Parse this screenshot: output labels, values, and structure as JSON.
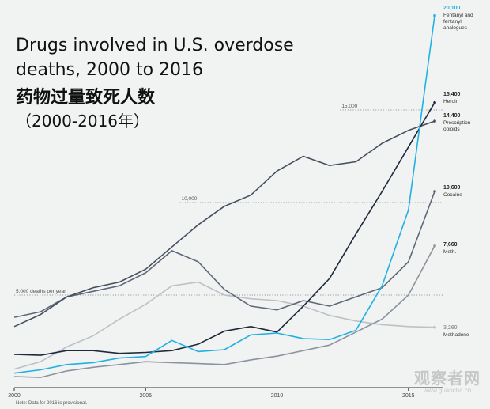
{
  "title_en": "Drugs involved in U.S. overdose deaths, 2000 to 2016",
  "title_zh": "药物过量致死人数",
  "title_zh_years": "（2000-2016年）",
  "note": "Note: Data for 2016 is provisional.",
  "watermark": {
    "name": "观察者网",
    "url": "www.guancha.cn"
  },
  "chart_data": {
    "type": "line",
    "title": "Drugs involved in U.S. overdose deaths, 2000 to 2016",
    "x": [
      2000,
      2001,
      2002,
      2003,
      2004,
      2005,
      2006,
      2007,
      2008,
      2009,
      2010,
      2011,
      2012,
      2013,
      2014,
      2015,
      2016
    ],
    "xlim": [
      2000,
      2016.3
    ],
    "ylim": [
      0,
      20600
    ],
    "x_ticks": [
      {
        "value": 2000,
        "label": "2000"
      },
      {
        "value": 2005,
        "label": "2005"
      },
      {
        "value": 2010,
        "label": "2010"
      },
      {
        "value": 2015,
        "label": "2015"
      }
    ],
    "reference_lines": [
      {
        "value": 5000,
        "label": "5,000 deaths per year"
      },
      {
        "value": 10000,
        "label": "10,000"
      },
      {
        "value": 15000,
        "label": "15,000"
      }
    ],
    "series": [
      {
        "name": "Fentanyl and fentanyl analogues",
        "end_label": "20,100",
        "label_lines": [
          "Fentanyl and",
          "fentanyl",
          "analogues"
        ],
        "color": "#1fb1e3",
        "values": [
          780,
          960,
          1250,
          1350,
          1600,
          1680,
          2550,
          1950,
          2050,
          2850,
          2950,
          2650,
          2600,
          3100,
          5500,
          9600,
          20100
        ]
      },
      {
        "name": "Heroin",
        "end_label": "15,400",
        "label_lines": [
          "Heroin"
        ],
        "color": "#1e2939",
        "values": [
          1800,
          1750,
          2000,
          2000,
          1850,
          1900,
          2000,
          2350,
          3050,
          3300,
          3000,
          4400,
          5900,
          8300,
          10600,
          13000,
          15400
        ]
      },
      {
        "name": "Prescription opioids",
        "end_label": "14,400",
        "label_lines": [
          "Prescription",
          "opioids"
        ],
        "color": "#454f5e",
        "values": [
          3300,
          3950,
          4900,
          5400,
          5700,
          6400,
          7600,
          8800,
          9800,
          10400,
          11700,
          12500,
          12000,
          12200,
          13200,
          13900,
          14400
        ]
      },
      {
        "name": "Cocaine",
        "end_label": "10,600",
        "label_lines": [
          "Cocaine"
        ],
        "color": "#5e6877",
        "values": [
          3800,
          4100,
          4900,
          5200,
          5500,
          6200,
          7400,
          6800,
          5300,
          4400,
          4200,
          4700,
          4400,
          4900,
          5400,
          6800,
          10600
        ]
      },
      {
        "name": "Meth.",
        "end_label": "7,660",
        "label_lines": [
          "Meth."
        ],
        "color": "#8b939e",
        "values": [
          600,
          550,
          900,
          1100,
          1250,
          1400,
          1350,
          1300,
          1250,
          1500,
          1700,
          2000,
          2300,
          3000,
          3700,
          5000,
          7660
        ]
      },
      {
        "name": "Methadone",
        "end_label": "3,260",
        "label_lines": [
          "Methadone"
        ],
        "color": "#bcc1c7",
        "values": [
          1000,
          1400,
          2200,
          2800,
          3700,
          4500,
          5500,
          5700,
          5000,
          4800,
          4700,
          4400,
          3900,
          3600,
          3400,
          3300,
          3260
        ]
      }
    ]
  }
}
